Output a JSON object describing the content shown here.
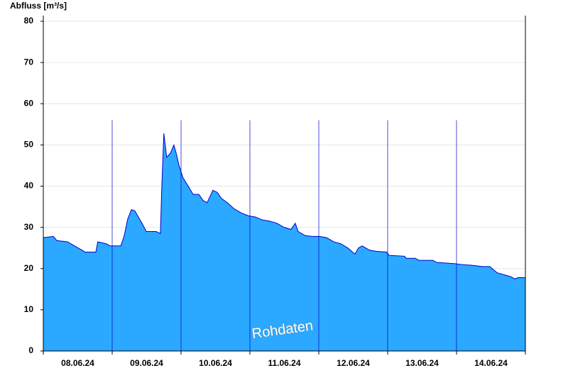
{
  "chart_data": {
    "type": "area",
    "ylabel": "Abfluss [m³/s]",
    "annotation": "Rohdaten",
    "color": "#2ba8ff",
    "line_color": "#0000cc",
    "grid": true,
    "xlim": [
      0,
      168
    ],
    "ylim": [
      0,
      80
    ],
    "yticks": [
      0,
      10,
      20,
      30,
      40,
      50,
      60,
      70,
      80
    ],
    "xticks": [
      {
        "value": 12,
        "label": "08.06.24"
      },
      {
        "value": 36,
        "label": "09.06.24"
      },
      {
        "value": 60,
        "label": "10.06.24"
      },
      {
        "value": 84,
        "label": "11.06.24"
      },
      {
        "value": 108,
        "label": "12.06.24"
      },
      {
        "value": 132,
        "label": "13.06.24"
      },
      {
        "value": 156,
        "label": "14.06.24"
      }
    ],
    "xminor_ticks": [
      0,
      24,
      48,
      72,
      96,
      120,
      144,
      168
    ],
    "x": [
      0,
      3.5,
      4.7,
      8.4,
      10.9,
      13.4,
      14.6,
      18.3,
      19,
      22,
      23.3,
      27,
      28.2,
      29.4,
      30.7,
      31.9,
      34.4,
      35.9,
      39.3,
      40.8,
      41.3,
      42,
      43,
      44.3,
      45.5,
      46.3,
      47.3,
      48.7,
      50.5,
      52.2,
      54.2,
      55.7,
      57.1,
      59.1,
      60.6,
      62.1,
      64.1,
      66.5,
      69,
      71.5,
      74,
      76.4,
      78.9,
      81.4,
      83.9,
      86.3,
      87.8,
      88.8,
      91.3,
      93.8,
      96.2,
      98.7,
      101.2,
      103.7,
      106.1,
      108.6,
      109.8,
      111.1,
      113.6,
      116,
      119.7,
      120.5,
      125.9,
      126.4,
      129.6,
      130.9,
      135.8,
      137,
      143.2,
      145.7,
      149.4,
      153.1,
      155.6,
      158.1,
      160.6,
      163,
      164.3,
      165.5,
      168
    ],
    "values": [
      27.5,
      27.8,
      26.8,
      26.5,
      25.5,
      24.5,
      24,
      24,
      26.5,
      26,
      25.5,
      25.5,
      28,
      32,
      34.3,
      34,
      31,
      29,
      29,
      28.5,
      40,
      52.8,
      47,
      48,
      50,
      48,
      45,
      42,
      40,
      38,
      38,
      36.5,
      36,
      39,
      38.5,
      37,
      36,
      34.5,
      33.5,
      32.8,
      32.5,
      31.8,
      31.5,
      31,
      30,
      29.5,
      31,
      29,
      28,
      27.8,
      27.8,
      27.5,
      26.5,
      26,
      25,
      23.5,
      25,
      25.5,
      24.5,
      24.2,
      24,
      23.2,
      23,
      22.5,
      22.5,
      22,
      22,
      21.5,
      21.2,
      21,
      20.8,
      20.5,
      20.5,
      19,
      18.5,
      18,
      17.5,
      17.8,
      17.8
    ]
  }
}
